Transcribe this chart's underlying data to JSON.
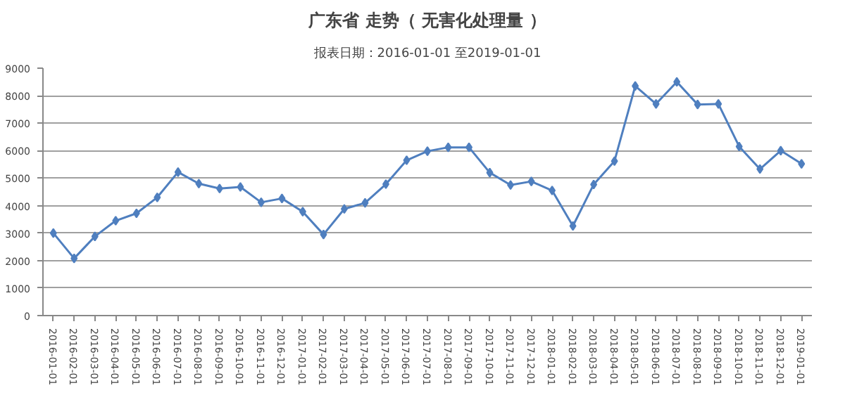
{
  "chart_data": {
    "type": "line",
    "title": "广东省 走势（ 无害化处理量 ）",
    "subtitle": "报表日期：2016-01-01 至2019-01-01",
    "categories": [
      "2016-01-01",
      "2016-02-01",
      "2016-03-01",
      "2016-04-01",
      "2016-05-01",
      "2016-06-01",
      "2016-07-01",
      "2016-08-01",
      "2016-09-01",
      "2016-10-01",
      "2016-11-01",
      "2016-12-01",
      "2017-01-01",
      "2017-02-01",
      "2017-03-01",
      "2017-04-01",
      "2017-05-01",
      "2017-06-01",
      "2017-07-01",
      "2017-08-01",
      "2017-09-01",
      "2017-10-01",
      "2017-11-01",
      "2017-12-01",
      "2018-01-01",
      "2018-02-01",
      "2018-03-01",
      "2018-04-01",
      "2018-05-01",
      "2018-06-01",
      "2018-07-01",
      "2018-08-01",
      "2018-09-01",
      "2018-10-01",
      "2018-11-01",
      "2018-12-01",
      "2019-01-01"
    ],
    "series": [
      {
        "color": "#4f7fbf",
        "values": [
          3000,
          2080,
          2880,
          3450,
          3720,
          4300,
          5220,
          4800,
          4620,
          4680,
          4120,
          4260,
          3780,
          2950,
          3880,
          4100,
          4780,
          5650,
          5980,
          6120,
          6120,
          5200,
          4750,
          4880,
          4550,
          3260,
          4770,
          5620,
          8350,
          7700,
          8500,
          7680,
          7700,
          6150,
          5330,
          6000,
          5520
        ]
      }
    ],
    "ylim": [
      0,
      9000
    ],
    "yticks": [
      0,
      1000,
      2000,
      3000,
      4000,
      5000,
      6000,
      7000,
      8000,
      9000
    ],
    "grid": "y",
    "marker": "diamond",
    "line_style": "solid"
  }
}
